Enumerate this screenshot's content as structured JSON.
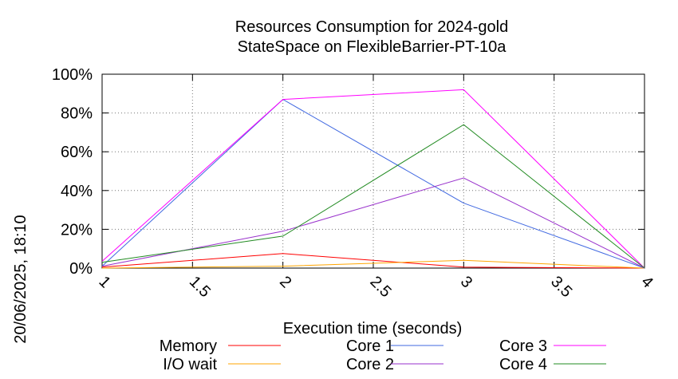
{
  "chart_data": {
    "type": "line",
    "title": "Resources Consumption for 2024-gold",
    "subtitle": "StateSpace on FlexibleBarrier-PT-10a",
    "xlabel": "Execution time (seconds)",
    "ylabel": "",
    "side_label": "20/06/2025, 18:10",
    "xlim": [
      1,
      4
    ],
    "ylim": [
      0,
      100
    ],
    "x_ticks": [
      "1",
      "1.5",
      "2",
      "2.5",
      "3",
      "3.5",
      "4"
    ],
    "y_ticks": [
      "0%",
      "20%",
      "40%",
      "60%",
      "80%",
      "100%"
    ],
    "grid": true,
    "legend_position": "bottom",
    "x": [
      1,
      2,
      3,
      4
    ],
    "series": [
      {
        "name": "Memory",
        "color": "#ff0000",
        "values": [
          0.5,
          7.5,
          0.5,
          0
        ]
      },
      {
        "name": "I/O wait",
        "color": "#ffa500",
        "values": [
          0,
          1,
          4,
          0
        ]
      },
      {
        "name": "Core 1",
        "color": "#4169e1",
        "values": [
          1,
          87,
          33.5,
          0
        ]
      },
      {
        "name": "Core 2",
        "color": "#9932cc",
        "values": [
          1,
          19,
          46.5,
          0
        ]
      },
      {
        "name": "Core 3",
        "color": "#ff00ff",
        "values": [
          3.5,
          87,
          92,
          0
        ]
      },
      {
        "name": "Core 4",
        "color": "#228b22",
        "values": [
          3,
          16.5,
          74,
          0
        ]
      }
    ]
  }
}
